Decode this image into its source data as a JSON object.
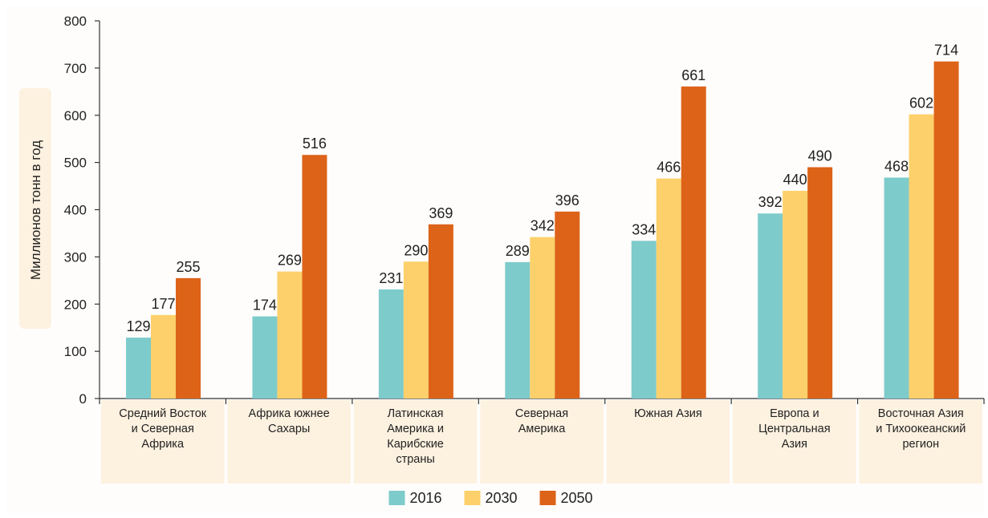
{
  "chart_data": {
    "type": "bar",
    "ylabel": "Миллионов тонн в год",
    "xlabel": "",
    "ylim": [
      0,
      800
    ],
    "yticks": [
      0,
      100,
      200,
      300,
      400,
      500,
      600,
      700,
      800
    ],
    "categories": [
      [
        "Средний Восток",
        "и Северная",
        "Африка"
      ],
      [
        "Африка южнее",
        "Сахары"
      ],
      [
        "Латинская",
        "Америка и",
        "Карибские",
        "страны"
      ],
      [
        "Северная",
        "Америка"
      ],
      [
        "Южная Азия"
      ],
      [
        "Европа и",
        "Центральная",
        "Азия"
      ],
      [
        "Восточная Азия",
        "и Тихоокеанский",
        "регион"
      ]
    ],
    "series": [
      {
        "name": "2016",
        "color": "#7ecbcb",
        "values": [
          129,
          174,
          231,
          289,
          334,
          392,
          468
        ]
      },
      {
        "name": "2030",
        "color": "#fdd06b",
        "values": [
          177,
          269,
          290,
          342,
          466,
          440,
          602
        ]
      },
      {
        "name": "2050",
        "color": "#dd6319",
        "values": [
          255,
          516,
          369,
          396,
          661,
          490,
          714
        ]
      }
    ],
    "legend": "bottom-center",
    "grid": false,
    "category_panel_color": "#fdf1e0"
  }
}
